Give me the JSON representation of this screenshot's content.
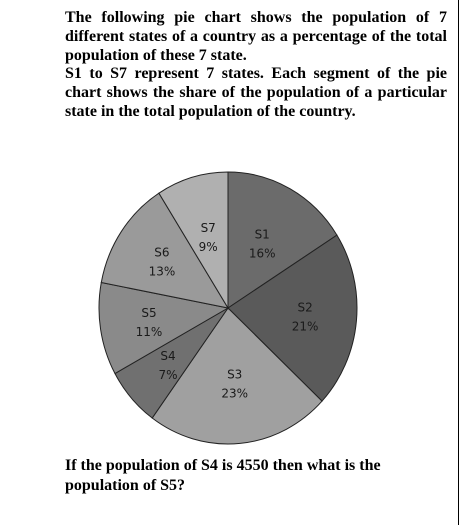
{
  "question": {
    "intro_line": "The following pie chart shows the population of 7 different states of a country as a percentage of the total population of these 7 state.",
    "intro_line2": "S1 to S7 represent 7 states. Each segment of the pie chart shows the share of the population of a particular state in the total population of the country.",
    "ask": "If the population of S4 is 4550 then what is the population of S5?"
  },
  "chart_data": {
    "type": "pie",
    "title": "",
    "slices": [
      {
        "label": "S1",
        "value": 16,
        "value_label": "16%",
        "color": "#6b6b6b"
      },
      {
        "label": "S2",
        "value": 21,
        "value_label": "21%",
        "color": "#5a5a5a"
      },
      {
        "label": "S3",
        "value": 23,
        "value_label": "23%",
        "color": "#a0a0a0"
      },
      {
        "label": "S4",
        "value": 7,
        "value_label": "7%",
        "color": "#707070"
      },
      {
        "label": "S5",
        "value": 11,
        "value_label": "11%",
        "color": "#8a8a8a"
      },
      {
        "label": "S6",
        "value": 13,
        "value_label": "13%",
        "color": "#9a9a9a"
      },
      {
        "label": "S7",
        "value": 9,
        "value_label": "9%",
        "color": "#b0b0b0"
      }
    ],
    "start_angle": "12 o'clock",
    "direction": "clockwise",
    "legend": "none",
    "slice_border_color": "#222222"
  }
}
